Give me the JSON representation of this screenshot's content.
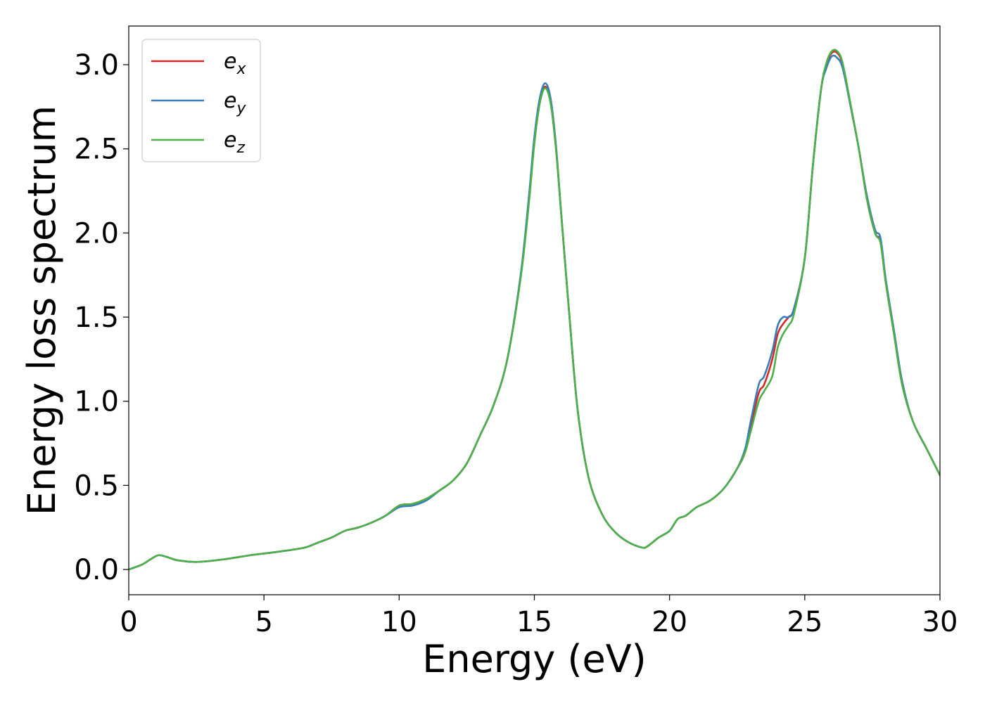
{
  "chart_data": {
    "type": "line",
    "title": "",
    "xlabel": "Energy (eV)",
    "ylabel": "Energy loss spectrum",
    "xlim": [
      0,
      30
    ],
    "ylim": [
      -0.15,
      3.23
    ],
    "xticks": [
      0,
      5,
      10,
      15,
      20,
      25,
      30
    ],
    "yticks": [
      0.0,
      0.5,
      1.0,
      1.5,
      2.0,
      2.5,
      3.0
    ],
    "xtick_labels": [
      "0",
      "5",
      "10",
      "15",
      "20",
      "25",
      "30"
    ],
    "ytick_labels": [
      "0.0",
      "0.5",
      "1.0",
      "1.5",
      "2.0",
      "2.5",
      "3.0"
    ],
    "grid": false,
    "legend": {
      "position": "top-left"
    },
    "series": [
      {
        "name": "e",
        "subscript": "x",
        "color": "#d62728",
        "x": [
          0,
          0.5,
          0.8,
          1.1,
          1.4,
          1.8,
          2.5,
          3.5,
          4.5,
          5.5,
          6.5,
          7,
          7.5,
          8,
          8.5,
          9,
          9.5,
          10,
          10.5,
          11,
          11.5,
          12,
          12.5,
          13,
          13.5,
          14,
          14.5,
          14.8,
          15.0,
          15.2,
          15.4,
          15.6,
          15.8,
          16.0,
          16.3,
          16.6,
          17.0,
          17.5,
          18.0,
          18.5,
          19.0,
          19.2,
          19.6,
          20.0,
          20.3,
          20.6,
          21.0,
          21.5,
          22.0,
          22.5,
          22.8,
          23.0,
          23.3,
          23.5,
          23.8,
          24.0,
          24.2,
          24.4,
          24.6,
          25.0,
          25.3,
          25.6,
          25.8,
          26.0,
          26.2,
          26.4,
          26.7,
          27.0,
          27.3,
          27.6,
          27.8,
          28.0,
          28.3,
          28.6,
          29.0,
          29.5,
          30.0
        ],
        "values": [
          0.0,
          0.03,
          0.06,
          0.085,
          0.075,
          0.055,
          0.045,
          0.06,
          0.085,
          0.105,
          0.13,
          0.16,
          0.19,
          0.23,
          0.25,
          0.28,
          0.32,
          0.38,
          0.39,
          0.42,
          0.47,
          0.53,
          0.63,
          0.8,
          0.98,
          1.25,
          1.75,
          2.2,
          2.55,
          2.78,
          2.87,
          2.78,
          2.5,
          2.1,
          1.5,
          0.95,
          0.55,
          0.33,
          0.22,
          0.16,
          0.13,
          0.14,
          0.19,
          0.23,
          0.3,
          0.32,
          0.37,
          0.41,
          0.48,
          0.6,
          0.7,
          0.85,
          1.05,
          1.1,
          1.25,
          1.4,
          1.46,
          1.5,
          1.55,
          1.85,
          2.4,
          2.85,
          3.0,
          3.07,
          3.07,
          3.0,
          2.75,
          2.5,
          2.2,
          2.0,
          1.95,
          1.7,
          1.4,
          1.1,
          0.88,
          0.72,
          0.56
        ]
      },
      {
        "name": "e",
        "subscript": "y",
        "color": "#377eb8",
        "x": [
          0,
          0.5,
          0.8,
          1.1,
          1.4,
          1.8,
          2.5,
          3.5,
          4.5,
          5.5,
          6.5,
          7,
          7.5,
          8,
          8.5,
          9,
          9.5,
          10,
          10.5,
          11,
          11.5,
          12,
          12.5,
          13,
          13.5,
          14,
          14.5,
          14.8,
          15.0,
          15.2,
          15.4,
          15.6,
          15.8,
          16.0,
          16.3,
          16.6,
          17.0,
          17.5,
          18.0,
          18.5,
          19.0,
          19.2,
          19.6,
          20.0,
          20.3,
          20.6,
          21.0,
          21.5,
          22.0,
          22.5,
          22.8,
          23.0,
          23.3,
          23.5,
          23.8,
          24.0,
          24.2,
          24.4,
          24.6,
          25.0,
          25.3,
          25.6,
          25.8,
          26.0,
          26.2,
          26.4,
          26.7,
          27.0,
          27.3,
          27.6,
          27.8,
          28.0,
          28.3,
          28.6,
          29.0,
          29.5,
          30.0
        ],
        "values": [
          0.0,
          0.03,
          0.06,
          0.085,
          0.075,
          0.055,
          0.045,
          0.06,
          0.085,
          0.105,
          0.13,
          0.16,
          0.19,
          0.23,
          0.25,
          0.28,
          0.32,
          0.37,
          0.38,
          0.41,
          0.47,
          0.53,
          0.63,
          0.8,
          0.98,
          1.25,
          1.76,
          2.22,
          2.57,
          2.8,
          2.89,
          2.8,
          2.52,
          2.1,
          1.5,
          0.95,
          0.55,
          0.33,
          0.22,
          0.16,
          0.13,
          0.14,
          0.19,
          0.23,
          0.3,
          0.32,
          0.37,
          0.41,
          0.48,
          0.6,
          0.72,
          0.88,
          1.1,
          1.15,
          1.3,
          1.45,
          1.5,
          1.5,
          1.55,
          1.85,
          2.4,
          2.85,
          2.98,
          3.05,
          3.04,
          2.98,
          2.75,
          2.5,
          2.22,
          2.02,
          1.97,
          1.72,
          1.42,
          1.12,
          0.88,
          0.72,
          0.56
        ]
      },
      {
        "name": "e",
        "subscript": "z",
        "color": "#4daf4a",
        "x": [
          0,
          0.5,
          0.8,
          1.1,
          1.4,
          1.8,
          2.5,
          3.5,
          4.5,
          5.5,
          6.5,
          7,
          7.5,
          8,
          8.5,
          9,
          9.5,
          10,
          10.5,
          11,
          11.5,
          12,
          12.5,
          13,
          13.5,
          14,
          14.5,
          14.8,
          15.0,
          15.2,
          15.4,
          15.6,
          15.8,
          16.0,
          16.3,
          16.6,
          17.0,
          17.5,
          18.0,
          18.5,
          19.0,
          19.2,
          19.6,
          20.0,
          20.3,
          20.6,
          21.0,
          21.5,
          22.0,
          22.5,
          22.8,
          23.0,
          23.3,
          23.5,
          23.8,
          24.0,
          24.2,
          24.4,
          24.6,
          25.0,
          25.3,
          25.6,
          25.8,
          26.0,
          26.2,
          26.4,
          26.7,
          27.0,
          27.3,
          27.6,
          27.8,
          28.0,
          28.3,
          28.6,
          29.0,
          29.5,
          30.0
        ],
        "values": [
          0.0,
          0.03,
          0.06,
          0.085,
          0.075,
          0.055,
          0.045,
          0.06,
          0.085,
          0.105,
          0.13,
          0.16,
          0.19,
          0.23,
          0.25,
          0.28,
          0.32,
          0.38,
          0.39,
          0.42,
          0.47,
          0.53,
          0.63,
          0.8,
          0.98,
          1.25,
          1.74,
          2.18,
          2.53,
          2.77,
          2.86,
          2.77,
          2.5,
          2.1,
          1.5,
          0.95,
          0.55,
          0.33,
          0.22,
          0.16,
          0.13,
          0.14,
          0.19,
          0.23,
          0.3,
          0.32,
          0.37,
          0.41,
          0.48,
          0.6,
          0.7,
          0.82,
          1.0,
          1.06,
          1.15,
          1.32,
          1.4,
          1.45,
          1.52,
          1.85,
          2.4,
          2.85,
          3.01,
          3.08,
          3.08,
          3.01,
          2.76,
          2.5,
          2.2,
          2.0,
          1.94,
          1.7,
          1.4,
          1.1,
          0.88,
          0.72,
          0.56
        ]
      }
    ]
  }
}
